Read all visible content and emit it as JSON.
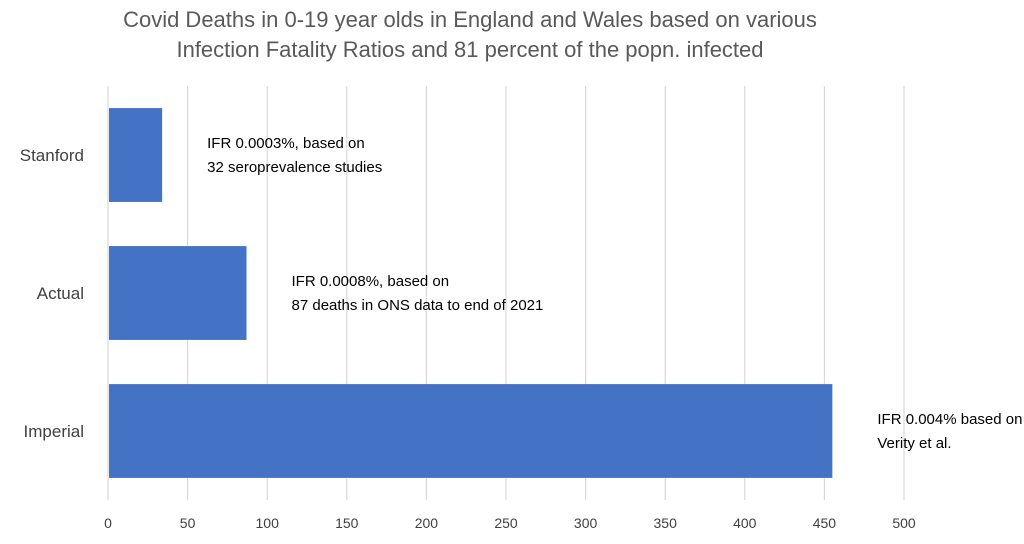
{
  "chart_data": {
    "type": "bar",
    "orientation": "horizontal",
    "title_lines": [
      "Covid Deaths in 0-19 year olds in England and Wales based on various",
      "Infection Fatality Ratios and 81 percent of the popn. infected"
    ],
    "categories": [
      "Stanford",
      "Actual",
      "Imperial"
    ],
    "values": [
      34,
      87,
      455
    ],
    "annotations": [
      [
        "IFR 0.0003%, based on",
        "32 seroprevalence studies"
      ],
      [
        "IFR 0.0008%, based on",
        "87 deaths in ONS data to end of 2021"
      ],
      [
        "IFR 0.004% based on",
        "Verity et al."
      ]
    ],
    "xlim": [
      0,
      500
    ],
    "xticks": [
      0,
      50,
      100,
      150,
      200,
      250,
      300,
      350,
      400,
      450,
      500
    ],
    "grid": true,
    "bar_color": "#4472c4",
    "grid_color": "#d9d9d9",
    "legend": "none"
  }
}
